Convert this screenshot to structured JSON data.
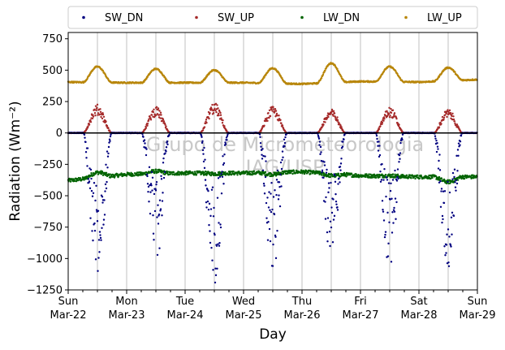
{
  "chart_data": {
    "type": "scatter",
    "title": "",
    "xlabel": "Day",
    "ylabel": "Radiation (Wm⁻²)",
    "ylim": [
      -1250,
      800
    ],
    "xlim": [
      "2020-03-22",
      "2020-03-29"
    ],
    "yticks": [
      -1250,
      -1000,
      -750,
      -500,
      -250,
      0,
      250,
      500,
      750
    ],
    "xticks": [
      {
        "date": "2020-03-22",
        "weekday": "Sun",
        "label": "Mar-22"
      },
      {
        "date": "2020-03-23",
        "weekday": "Mon",
        "label": "Mar-23"
      },
      {
        "date": "2020-03-24",
        "weekday": "Tue",
        "label": "Mar-24"
      },
      {
        "date": "2020-03-25",
        "weekday": "Wed",
        "label": "Mar-25"
      },
      {
        "date": "2020-03-26",
        "weekday": "Thu",
        "label": "Mar-26"
      },
      {
        "date": "2020-03-27",
        "weekday": "Fri",
        "label": "Mar-27"
      },
      {
        "date": "2020-03-28",
        "weekday": "Sat",
        "label": "Mar-28"
      },
      {
        "date": "2020-03-29",
        "weekday": "Sun",
        "label": "Mar-29"
      }
    ],
    "grid": "vertical",
    "legend_position": "top",
    "watermark": [
      "Grupo de Micrometeorologia",
      "IAG/USP"
    ],
    "series": [
      {
        "name": "SW_DN",
        "color": "#000080",
        "daily": [
          {
            "date": "2020-03-22",
            "peak": -1150
          },
          {
            "date": "2020-03-23",
            "peak": -1020
          },
          {
            "date": "2020-03-24",
            "peak": -1190
          },
          {
            "date": "2020-03-25",
            "peak": -1060
          },
          {
            "date": "2020-03-26",
            "peak": -960
          },
          {
            "date": "2020-03-27",
            "peak": -1050
          },
          {
            "date": "2020-03-28",
            "peak": -1060
          }
        ]
      },
      {
        "name": "SW_UP",
        "color": "#a52a2a",
        "daily": [
          {
            "date": "2020-03-22",
            "peak": 215
          },
          {
            "date": "2020-03-23",
            "peak": 200
          },
          {
            "date": "2020-03-24",
            "peak": 230
          },
          {
            "date": "2020-03-25",
            "peak": 200
          },
          {
            "date": "2020-03-26",
            "peak": 180
          },
          {
            "date": "2020-03-27",
            "peak": 195
          },
          {
            "date": "2020-03-28",
            "peak": 180
          }
        ]
      },
      {
        "name": "LW_DN",
        "color": "#006400",
        "daily": [
          {
            "date": "2020-03-22",
            "night": -380,
            "peak": -340
          },
          {
            "date": "2020-03-23",
            "night": -330,
            "peak": -310
          },
          {
            "date": "2020-03-24",
            "night": -320,
            "peak": -325
          },
          {
            "date": "2020-03-25",
            "night": -320,
            "peak": -335
          },
          {
            "date": "2020-03-26",
            "night": -310,
            "peak": -325
          },
          {
            "date": "2020-03-27",
            "night": -340,
            "peak": -335
          },
          {
            "date": "2020-03-28",
            "night": -350,
            "peak": -390
          }
        ]
      },
      {
        "name": "LW_UP",
        "color": "#b8860b",
        "daily": [
          {
            "date": "2020-03-22",
            "night": 405,
            "peak": 530
          },
          {
            "date": "2020-03-23",
            "night": 400,
            "peak": 510
          },
          {
            "date": "2020-03-24",
            "night": 400,
            "peak": 500
          },
          {
            "date": "2020-03-25",
            "night": 400,
            "peak": 520
          },
          {
            "date": "2020-03-26",
            "night": 390,
            "peak": 545
          },
          {
            "date": "2020-03-27",
            "night": 410,
            "peak": 530
          },
          {
            "date": "2020-03-28",
            "night": 405,
            "peak": 510
          },
          {
            "date": "2020-03-29",
            "night": 425
          }
        ]
      }
    ]
  }
}
